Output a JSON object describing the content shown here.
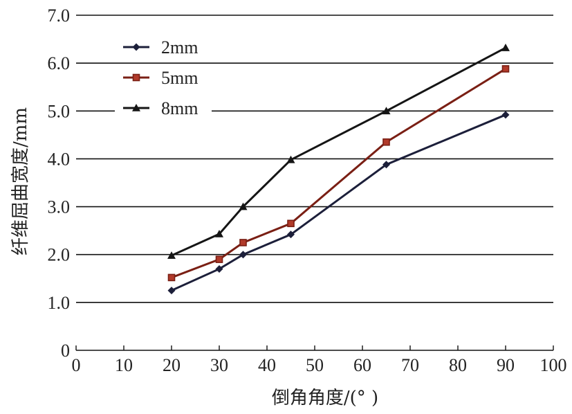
{
  "chart_data": {
    "type": "line",
    "xlabel": "倒角角度/(°  )",
    "ylabel": "纤维屈曲宽度/mm",
    "xlim": [
      0,
      100
    ],
    "ylim": [
      0,
      7.0
    ],
    "x_ticks": [
      "0",
      "10",
      "20",
      "30",
      "40",
      "50",
      "60",
      "70",
      "80",
      "90",
      "100"
    ],
    "y_ticks": [
      "0",
      "1.0",
      "2.0",
      "3.0",
      "4.0",
      "5.0",
      "6.0",
      "7.0"
    ],
    "grid": "horizontal",
    "legend_position": "top-left",
    "series": [
      {
        "name": "2mm",
        "color": "#1c1f3a",
        "marker": "diamond",
        "x": [
          20,
          30,
          35,
          45,
          65,
          90
        ],
        "y": [
          1.25,
          1.7,
          2.0,
          2.42,
          3.88,
          4.92
        ]
      },
      {
        "name": "5mm",
        "color": "#7a1f14",
        "marker": "square",
        "x": [
          20,
          30,
          35,
          45,
          65,
          90
        ],
        "y": [
          1.52,
          1.9,
          2.25,
          2.65,
          4.35,
          5.88
        ]
      },
      {
        "name": "8mm",
        "color": "#151515",
        "marker": "triangle",
        "x": [
          20,
          30,
          35,
          45,
          65,
          90
        ],
        "y": [
          1.98,
          2.43,
          3.0,
          3.98,
          5.0,
          6.32
        ]
      }
    ]
  }
}
